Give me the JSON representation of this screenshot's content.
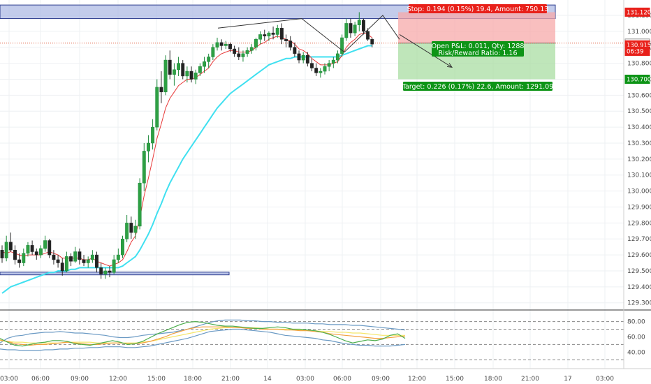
{
  "chart_data": [
    {
      "type": "candlestick",
      "y_ticks": [
        "131.100",
        "131.000",
        "130.900",
        "130.800",
        "130.700",
        "130.600",
        "130.500",
        "130.400",
        "130.300",
        "130.200",
        "130.100",
        "130.000",
        "129.900",
        "129.800",
        "129.700",
        "129.600",
        "129.500",
        "129.400",
        "129.300"
      ],
      "x_ticks": [
        "03:00",
        "06:00",
        "09:00",
        "12:00",
        "15:00",
        "18:00",
        "21:00",
        "14",
        "03:00",
        "06:00",
        "09:00",
        "12:00",
        "15:00",
        "18:00",
        "21:00",
        "17",
        "03:00"
      ],
      "ylim": [
        129.29,
        131.17
      ],
      "candles": [
        {
          "o": 129.63,
          "h": 129.66,
          "l": 129.55,
          "c": 129.58
        },
        {
          "o": 129.58,
          "h": 129.72,
          "l": 129.56,
          "c": 129.68
        },
        {
          "o": 129.68,
          "h": 129.74,
          "l": 129.62,
          "c": 129.63
        },
        {
          "o": 129.63,
          "h": 129.66,
          "l": 129.54,
          "c": 129.57
        },
        {
          "o": 129.57,
          "h": 129.61,
          "l": 129.52,
          "c": 129.55
        },
        {
          "o": 129.55,
          "h": 129.64,
          "l": 129.53,
          "c": 129.61
        },
        {
          "o": 129.61,
          "h": 129.68,
          "l": 129.59,
          "c": 129.66
        },
        {
          "o": 129.66,
          "h": 129.69,
          "l": 129.6,
          "c": 129.62
        },
        {
          "o": 129.62,
          "h": 129.64,
          "l": 129.57,
          "c": 129.6
        },
        {
          "o": 129.6,
          "h": 129.66,
          "l": 129.58,
          "c": 129.64
        },
        {
          "o": 129.64,
          "h": 129.72,
          "l": 129.62,
          "c": 129.69
        },
        {
          "o": 129.69,
          "h": 129.7,
          "l": 129.58,
          "c": 129.6
        },
        {
          "o": 129.6,
          "h": 129.63,
          "l": 129.54,
          "c": 129.57
        },
        {
          "o": 129.57,
          "h": 129.6,
          "l": 129.52,
          "c": 129.55
        },
        {
          "o": 129.55,
          "h": 129.58,
          "l": 129.47,
          "c": 129.5
        },
        {
          "o": 129.5,
          "h": 129.62,
          "l": 129.49,
          "c": 129.59
        },
        {
          "o": 129.59,
          "h": 129.61,
          "l": 129.53,
          "c": 129.56
        },
        {
          "o": 129.56,
          "h": 129.65,
          "l": 129.55,
          "c": 129.62
        },
        {
          "o": 129.62,
          "h": 129.64,
          "l": 129.54,
          "c": 129.57
        },
        {
          "o": 129.57,
          "h": 129.6,
          "l": 129.53,
          "c": 129.55
        },
        {
          "o": 129.55,
          "h": 129.59,
          "l": 129.52,
          "c": 129.57
        },
        {
          "o": 129.57,
          "h": 129.63,
          "l": 129.55,
          "c": 129.6
        },
        {
          "o": 129.6,
          "h": 129.62,
          "l": 129.49,
          "c": 129.52
        },
        {
          "o": 129.52,
          "h": 129.55,
          "l": 129.45,
          "c": 129.48
        },
        {
          "o": 129.48,
          "h": 129.52,
          "l": 129.45,
          "c": 129.5
        },
        {
          "o": 129.5,
          "h": 129.53,
          "l": 129.46,
          "c": 129.49
        },
        {
          "o": 129.49,
          "h": 129.6,
          "l": 129.48,
          "c": 129.57
        },
        {
          "o": 129.57,
          "h": 129.64,
          "l": 129.55,
          "c": 129.6
        },
        {
          "o": 129.6,
          "h": 129.72,
          "l": 129.58,
          "c": 129.7
        },
        {
          "o": 129.7,
          "h": 129.85,
          "l": 129.68,
          "c": 129.8
        },
        {
          "o": 129.8,
          "h": 129.84,
          "l": 129.7,
          "c": 129.74
        },
        {
          "o": 129.74,
          "h": 129.82,
          "l": 129.7,
          "c": 129.78
        },
        {
          "o": 129.78,
          "h": 130.08,
          "l": 129.76,
          "c": 130.05
        },
        {
          "o": 130.05,
          "h": 130.3,
          "l": 130.0,
          "c": 130.25
        },
        {
          "o": 130.25,
          "h": 130.35,
          "l": 130.18,
          "c": 130.3
        },
        {
          "o": 130.3,
          "h": 130.45,
          "l": 130.26,
          "c": 130.4
        },
        {
          "o": 130.4,
          "h": 130.7,
          "l": 130.38,
          "c": 130.65
        },
        {
          "o": 130.65,
          "h": 130.75,
          "l": 130.55,
          "c": 130.62
        },
        {
          "o": 130.62,
          "h": 130.85,
          "l": 130.6,
          "c": 130.82
        },
        {
          "o": 130.82,
          "h": 130.88,
          "l": 130.7,
          "c": 130.73
        },
        {
          "o": 130.73,
          "h": 130.8,
          "l": 130.66,
          "c": 130.76
        },
        {
          "o": 130.76,
          "h": 130.84,
          "l": 130.72,
          "c": 130.8
        },
        {
          "o": 130.8,
          "h": 130.82,
          "l": 130.7,
          "c": 130.72
        },
        {
          "o": 130.72,
          "h": 130.78,
          "l": 130.68,
          "c": 130.75
        },
        {
          "o": 130.75,
          "h": 130.78,
          "l": 130.68,
          "c": 130.7
        },
        {
          "o": 130.7,
          "h": 130.76,
          "l": 130.67,
          "c": 130.74
        },
        {
          "o": 130.74,
          "h": 130.8,
          "l": 130.72,
          "c": 130.78
        },
        {
          "o": 130.78,
          "h": 130.84,
          "l": 130.74,
          "c": 130.81
        },
        {
          "o": 130.81,
          "h": 130.86,
          "l": 130.77,
          "c": 130.84
        },
        {
          "o": 130.84,
          "h": 130.92,
          "l": 130.82,
          "c": 130.9
        },
        {
          "o": 130.9,
          "h": 130.96,
          "l": 130.88,
          "c": 130.93
        },
        {
          "o": 130.93,
          "h": 130.95,
          "l": 130.88,
          "c": 130.91
        },
        {
          "o": 130.91,
          "h": 130.94,
          "l": 130.89,
          "c": 130.92
        },
        {
          "o": 130.92,
          "h": 130.93,
          "l": 130.87,
          "c": 130.89
        },
        {
          "o": 130.89,
          "h": 130.91,
          "l": 130.84,
          "c": 130.86
        },
        {
          "o": 130.86,
          "h": 130.9,
          "l": 130.82,
          "c": 130.84
        },
        {
          "o": 130.84,
          "h": 130.88,
          "l": 130.81,
          "c": 130.86
        },
        {
          "o": 130.86,
          "h": 130.9,
          "l": 130.84,
          "c": 130.88
        },
        {
          "o": 130.88,
          "h": 130.92,
          "l": 130.86,
          "c": 130.9
        },
        {
          "o": 130.9,
          "h": 130.96,
          "l": 130.88,
          "c": 130.95
        },
        {
          "o": 130.95,
          "h": 131.0,
          "l": 130.92,
          "c": 130.98
        },
        {
          "o": 130.98,
          "h": 131.01,
          "l": 130.94,
          "c": 130.97
        },
        {
          "o": 130.97,
          "h": 131.0,
          "l": 130.94,
          "c": 130.99
        },
        {
          "o": 130.99,
          "h": 131.03,
          "l": 130.95,
          "c": 130.98
        },
        {
          "o": 130.98,
          "h": 131.04,
          "l": 130.96,
          "c": 131.02
        },
        {
          "o": 131.02,
          "h": 131.05,
          "l": 130.92,
          "c": 130.95
        },
        {
          "o": 130.95,
          "h": 130.98,
          "l": 130.9,
          "c": 130.94
        },
        {
          "o": 130.94,
          "h": 130.97,
          "l": 130.88,
          "c": 130.9
        },
        {
          "o": 130.9,
          "h": 130.93,
          "l": 130.84,
          "c": 130.86
        },
        {
          "o": 130.86,
          "h": 130.88,
          "l": 130.8,
          "c": 130.82
        },
        {
          "o": 130.82,
          "h": 130.87,
          "l": 130.8,
          "c": 130.85
        },
        {
          "o": 130.85,
          "h": 130.87,
          "l": 130.78,
          "c": 130.8
        },
        {
          "o": 130.8,
          "h": 130.83,
          "l": 130.75,
          "c": 130.77
        },
        {
          "o": 130.77,
          "h": 130.8,
          "l": 130.72,
          "c": 130.74
        },
        {
          "o": 130.74,
          "h": 130.77,
          "l": 130.71,
          "c": 130.75
        },
        {
          "o": 130.75,
          "h": 130.8,
          "l": 130.73,
          "c": 130.78
        },
        {
          "o": 130.78,
          "h": 130.82,
          "l": 130.75,
          "c": 130.8
        },
        {
          "o": 130.8,
          "h": 130.84,
          "l": 130.77,
          "c": 130.82
        },
        {
          "o": 130.82,
          "h": 130.88,
          "l": 130.8,
          "c": 130.86
        },
        {
          "o": 130.86,
          "h": 130.98,
          "l": 130.84,
          "c": 130.96
        },
        {
          "o": 130.96,
          "h": 131.08,
          "l": 130.94,
          "c": 131.05
        },
        {
          "o": 131.05,
          "h": 131.08,
          "l": 130.96,
          "c": 130.99
        },
        {
          "o": 130.99,
          "h": 131.06,
          "l": 130.97,
          "c": 131.04
        },
        {
          "o": 131.04,
          "h": 131.12,
          "l": 131.0,
          "c": 131.07
        },
        {
          "o": 131.07,
          "h": 131.08,
          "l": 130.98,
          "c": 131.0
        },
        {
          "o": 131.0,
          "h": 131.02,
          "l": 130.94,
          "c": 130.95
        },
        {
          "o": 130.95,
          "h": 130.96,
          "l": 130.9,
          "c": 130.92
        }
      ],
      "ema_fast": [
        129.62,
        129.61,
        129.62,
        129.61,
        129.6,
        129.59,
        129.6,
        129.6,
        129.6,
        129.6,
        129.61,
        129.62,
        129.61,
        129.6,
        129.58,
        129.58,
        129.58,
        129.58,
        129.58,
        129.57,
        129.57,
        129.58,
        129.56,
        129.55,
        129.54,
        129.53,
        129.54,
        129.55,
        129.57,
        129.62,
        129.68,
        129.72,
        129.83,
        129.97,
        130.08,
        130.2,
        130.33,
        130.42,
        130.52,
        130.58,
        130.62,
        130.66,
        130.68,
        130.7,
        130.7,
        130.71,
        130.73,
        130.75,
        130.77,
        130.81,
        130.84,
        130.86,
        130.87,
        130.88,
        130.88,
        130.87,
        130.87,
        130.87,
        130.88,
        130.9,
        130.92,
        130.93,
        130.95,
        130.96,
        130.97,
        130.96,
        130.95,
        130.94,
        130.92,
        130.89,
        130.88,
        130.86,
        130.83,
        130.81,
        130.79,
        130.79,
        130.79,
        130.8,
        130.81,
        130.85,
        130.9,
        130.93,
        130.95,
        130.98,
        130.99,
        130.98,
        130.96
      ],
      "ema_slow": [
        129.36,
        129.38,
        129.4,
        129.41,
        129.42,
        129.43,
        129.44,
        129.45,
        129.46,
        129.47,
        129.48,
        129.49,
        129.49,
        129.5,
        129.5,
        129.5,
        129.51,
        129.51,
        129.52,
        129.52,
        129.52,
        129.52,
        129.52,
        129.52,
        129.52,
        129.52,
        129.52,
        129.52,
        129.53,
        129.55,
        129.57,
        129.59,
        129.63,
        129.68,
        129.73,
        129.79,
        129.86,
        129.92,
        129.99,
        130.05,
        130.1,
        130.15,
        130.2,
        130.24,
        130.28,
        130.32,
        130.36,
        130.4,
        130.44,
        130.48,
        130.52,
        130.55,
        130.58,
        130.61,
        130.63,
        130.65,
        130.67,
        130.69,
        130.71,
        130.73,
        130.75,
        130.77,
        130.79,
        130.8,
        130.81,
        130.82,
        130.83,
        130.83,
        130.84,
        130.84,
        130.84,
        130.84,
        130.84,
        130.84,
        130.84,
        130.84,
        130.84,
        130.84,
        130.84,
        130.85,
        130.86,
        130.87,
        130.88,
        130.89,
        130.9,
        130.91,
        130.91
      ],
      "support_zone": [
        129.475,
        129.492
      ],
      "resistance_zone": [
        131.115,
        131.165
      ],
      "pattern_line": [
        131.02,
        131.08,
        130.87,
        131.1,
        130.95
      ],
      "position": {
        "entry": 130.926,
        "stop": 131.12,
        "target": 130.7
      },
      "stop_label": "Stop: 0.194 (0.15%) 19.4, Amount: 750.13",
      "target_label": "Target: 0.226 (0.17%) 22.6, Amount: 1291.09",
      "pnl_label": "Open P&L: 0.011, Qty: 1288",
      "rr_label": "Risk/Reward Ratio: 1.16",
      "price_badges": [
        {
          "text": "131.120",
          "value": 131.12,
          "color": "#e8201a"
        },
        {
          "text": "130.926",
          "value": 130.926,
          "color": "#ffffff",
          "textColor": "#222222",
          "border": "#999999"
        },
        {
          "text": "130.915",
          "value": 130.915,
          "color": "#e8201a"
        },
        {
          "text": "06:39",
          "value": 130.875,
          "color": "#e8201a"
        },
        {
          "text": "130.700",
          "value": 130.7,
          "color": "#0d9416"
        }
      ]
    },
    {
      "type": "line",
      "y_ticks": [
        "80.00",
        "60.00",
        "40.00"
      ],
      "y_values": [
        80,
        60,
        40
      ],
      "ylim": [
        22,
        86
      ],
      "dashed_levels": [
        80,
        70,
        50,
        30
      ],
      "series": [
        {
          "color": "#6b9ac4",
          "values": [
            52,
            58,
            61,
            62,
            64,
            65,
            66,
            66,
            67,
            66,
            65,
            65,
            64,
            63,
            62,
            60,
            59,
            59,
            60,
            62,
            63,
            64,
            65,
            66,
            68,
            70,
            73,
            76,
            79,
            81,
            82,
            82,
            82,
            81,
            81,
            80,
            80,
            79,
            79,
            78,
            78,
            78,
            77,
            77,
            76,
            76,
            76,
            75,
            75,
            74,
            73,
            72,
            71,
            70,
            69
          ]
        },
        {
          "color": "#6b9ac4",
          "values": [
            44,
            43,
            43,
            42,
            42,
            42,
            43,
            43,
            44,
            44,
            45,
            45,
            46,
            46,
            47,
            47,
            47,
            46,
            46,
            47,
            48,
            50,
            52,
            54,
            56,
            58,
            61,
            64,
            67,
            68,
            69,
            70,
            70,
            69,
            68,
            67,
            66,
            64,
            62,
            61,
            60,
            59,
            58,
            56,
            55,
            53,
            51,
            50,
            49,
            49,
            48,
            48,
            48,
            49,
            50
          ]
        },
        {
          "color": "#f5e66a",
          "values": [
            55,
            54,
            53,
            53,
            52,
            52,
            52,
            52,
            52,
            53,
            53,
            53,
            53,
            52,
            52,
            52,
            52,
            52,
            52,
            53,
            54,
            56,
            58,
            60,
            62,
            64,
            66,
            68,
            70,
            71,
            72,
            72,
            72,
            72,
            72,
            71,
            70,
            70,
            70,
            69,
            69,
            68,
            68,
            67,
            67,
            66,
            66,
            65,
            65,
            64,
            63,
            62,
            62,
            62,
            62
          ]
        },
        {
          "color": "#f3a13f",
          "values": [
            56,
            54,
            51,
            50,
            49,
            50,
            50,
            51,
            52,
            53,
            52,
            51,
            50,
            50,
            51,
            52,
            52,
            51,
            51,
            52,
            54,
            57,
            60,
            64,
            67,
            70,
            72,
            73,
            73,
            73,
            73,
            72,
            72,
            71,
            71,
            70,
            70,
            70,
            69,
            69,
            68,
            68,
            67,
            66,
            64,
            63,
            62,
            61,
            60,
            59,
            58,
            58,
            59,
            60,
            61
          ]
        },
        {
          "color": "#4cae4c",
          "values": [
            58,
            53,
            49,
            48,
            50,
            52,
            53,
            55,
            55,
            54,
            51,
            50,
            49,
            51,
            53,
            55,
            53,
            50,
            51,
            54,
            59,
            64,
            68,
            72,
            76,
            79,
            80,
            79,
            77,
            75,
            74,
            74,
            73,
            72,
            71,
            71,
            72,
            73,
            72,
            70,
            70,
            69,
            68,
            66,
            63,
            59,
            55,
            52,
            54,
            56,
            55,
            57,
            62,
            64,
            58
          ]
        }
      ]
    }
  ]
}
